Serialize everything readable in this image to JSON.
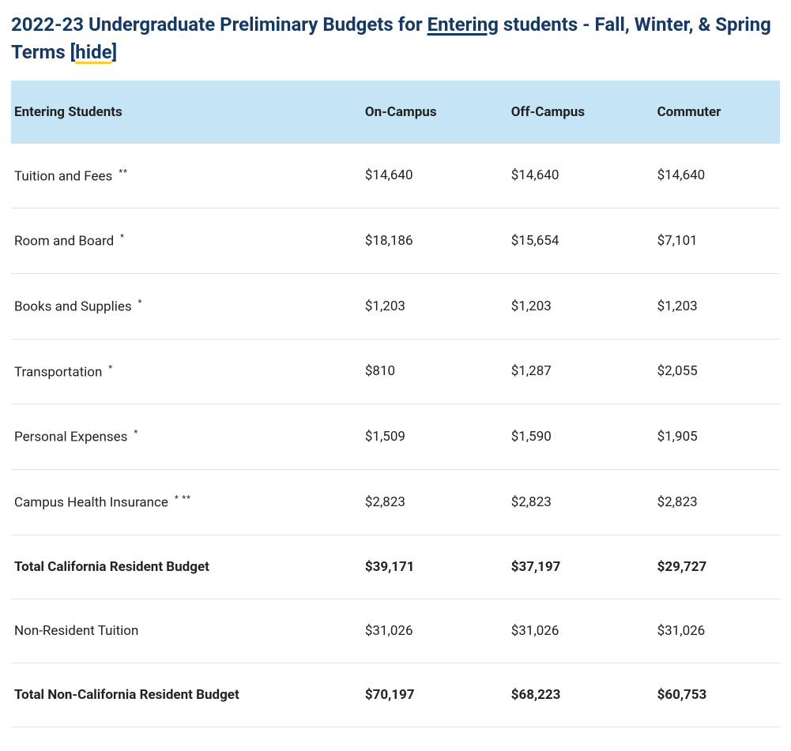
{
  "title": {
    "prefix": "2022-23 Undergraduate Preliminary Budgets for ",
    "underlined": "Entering",
    "suffix": " students - Fall, Winter, & Spring Terms [",
    "hide_label": "hide",
    "close_bracket": "]",
    "text_color": "#163963",
    "underline_accent": "#ffcc33"
  },
  "table": {
    "header_bg": "#c5e5f7",
    "row_border": "#e3e3e3",
    "columns": [
      "Entering Students",
      "On-Campus",
      "Off-Campus",
      "Commuter"
    ],
    "rows": [
      {
        "label": "Tuition and Fees",
        "sup": "**",
        "values": [
          "$14,640",
          "$14,640",
          "$14,640"
        ],
        "bold": false
      },
      {
        "label": "Room and Board",
        "sup": "*",
        "values": [
          "$18,186",
          "$15,654",
          "$7,101"
        ],
        "bold": false
      },
      {
        "label": "Books and Supplies",
        "sup": "*",
        "values": [
          "$1,203",
          "$1,203",
          "$1,203"
        ],
        "bold": false
      },
      {
        "label": "Transportation",
        "sup": "*",
        "values": [
          "$810",
          "$1,287",
          "$2,055"
        ],
        "bold": false
      },
      {
        "label": "Personal Expenses",
        "sup": "*",
        "values": [
          "$1,509",
          "$1,590",
          "$1,905"
        ],
        "bold": false
      },
      {
        "label": "Campus Health Insurance",
        "sup": "* **",
        "values": [
          "$2,823",
          "$2,823",
          "$2,823"
        ],
        "bold": false
      },
      {
        "label": "Total California Resident Budget",
        "sup": "",
        "values": [
          "$39,171",
          "$37,197",
          "$29,727"
        ],
        "bold": true
      },
      {
        "label": "Non-Resident Tuition",
        "sup": "",
        "values": [
          "$31,026",
          "$31,026",
          "$31,026"
        ],
        "bold": false
      },
      {
        "label": "Total Non-California Resident Budget",
        "sup": "",
        "values": [
          "$70,197",
          "$68,223",
          "$60,753"
        ],
        "bold": true
      }
    ]
  }
}
